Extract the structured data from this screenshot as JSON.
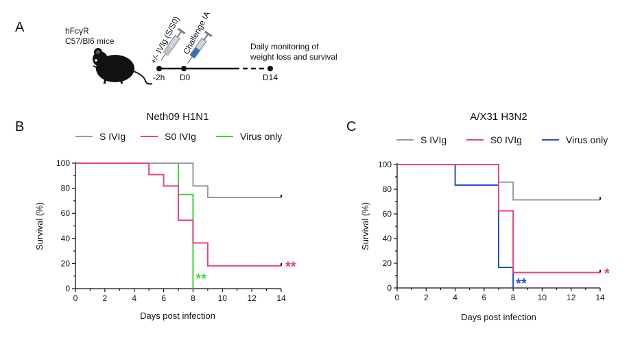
{
  "schematic": {
    "panel_label": "A",
    "mouse_label_line1": "hFcγR",
    "mouse_label_line2": "C57/Bl6 mice",
    "treatment_label": "+/- IVIg (S/S0)",
    "challenge_label": "Challenge IA",
    "monitoring_line1": "Daily monitoring of",
    "monitoring_line2": "weight loss and survival",
    "timepoints": [
      "-2h",
      "D0",
      "D14"
    ]
  },
  "colors": {
    "s_ivig": "#9a9a9a",
    "s0_ivig": "#e8408a",
    "virus_h1n1": "#3ed33e",
    "virus_h3n2": "#2050d0",
    "axis": "#111111"
  },
  "chart_data": [
    {
      "type": "line",
      "subtype": "kaplan-meier step",
      "panel_label": "B",
      "title": "Neth09 H1N1",
      "xlabel": "Days post infection",
      "ylabel": "Survival (%)",
      "xlim": [
        0,
        14
      ],
      "ylim": [
        0,
        100
      ],
      "xticks": [
        "0",
        "2",
        "4",
        "6",
        "8",
        "10",
        "12",
        "14"
      ],
      "yticks": [
        "0",
        "20",
        "40",
        "60",
        "80",
        "100"
      ],
      "legend_position": "top",
      "series": [
        {
          "name": "S IVIg",
          "color": "#9a9a9a",
          "steps": [
            [
              0,
              100
            ],
            [
              8,
              81.8
            ],
            [
              9,
              72.7
            ],
            [
              14,
              72.7
            ]
          ],
          "censor_tick": true,
          "stars": ""
        },
        {
          "name": "S0 IVIg",
          "color": "#e8408a",
          "steps": [
            [
              0,
              100
            ],
            [
              5,
              90.9
            ],
            [
              6,
              81.8
            ],
            [
              7,
              54.5
            ],
            [
              8,
              36.4
            ],
            [
              9,
              18.2
            ],
            [
              14,
              18.2
            ]
          ],
          "censor_tick": true,
          "stars": "**"
        },
        {
          "name": "Virus only",
          "color": "#3ed33e",
          "steps": [
            [
              0,
              100
            ],
            [
              7,
              75
            ],
            [
              8,
              0
            ]
          ],
          "censor_tick": false,
          "stars": "**"
        }
      ]
    },
    {
      "type": "line",
      "subtype": "kaplan-meier step",
      "panel_label": "C",
      "title": "A/X31 H3N2",
      "xlabel": "Days post infection",
      "ylabel": "Survival (%)",
      "xlim": [
        0,
        14
      ],
      "ylim": [
        0,
        100
      ],
      "xticks": [
        "0",
        "2",
        "4",
        "6",
        "8",
        "10",
        "12",
        "14"
      ],
      "yticks": [
        "0",
        "20",
        "40",
        "60",
        "80",
        "100"
      ],
      "legend_position": "top",
      "series": [
        {
          "name": "S IVIg",
          "color": "#9a9a9a",
          "steps": [
            [
              0,
              100
            ],
            [
              7,
              85.7
            ],
            [
              8,
              71.4
            ],
            [
              14,
              71.4
            ]
          ],
          "censor_tick": true,
          "stars": ""
        },
        {
          "name": "S0 IVIg",
          "color": "#e8408a",
          "steps": [
            [
              0,
              100
            ],
            [
              7,
              62.5
            ],
            [
              8,
              12.5
            ],
            [
              14,
              12.5
            ]
          ],
          "censor_tick": true,
          "stars": "*"
        },
        {
          "name": "Virus only",
          "color": "#2050d0",
          "steps": [
            [
              0,
              100
            ],
            [
              4,
              83.3
            ],
            [
              7,
              16.7
            ],
            [
              8,
              0
            ]
          ],
          "censor_tick": false,
          "stars": "**"
        }
      ]
    }
  ]
}
